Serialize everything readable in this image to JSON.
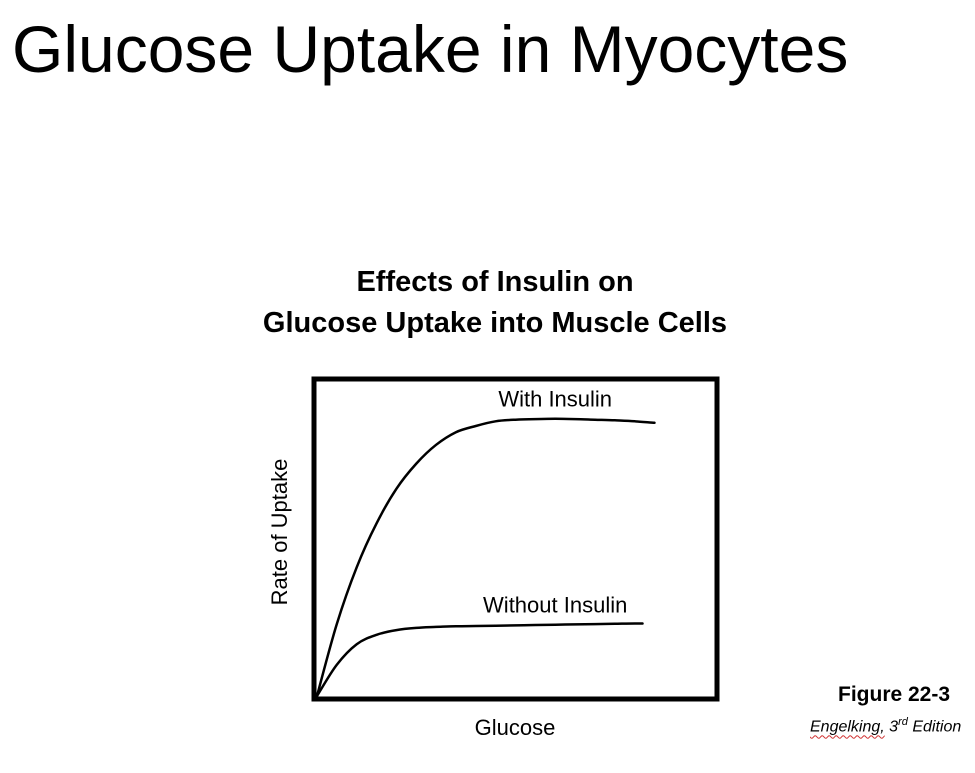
{
  "slide": {
    "title": "Glucose Uptake in Myocytes"
  },
  "figure": {
    "caption": "Figure 22-3",
    "credit": {
      "author": "Engelking,",
      "edition_number": "3",
      "edition_suffix": "rd",
      "edition_word": "Edition"
    }
  },
  "chart_data": {
    "type": "line",
    "title_lines": [
      "Effects of Insulin on",
      "Glucose Uptake into Muscle Cells"
    ],
    "xlabel": "Glucose",
    "ylabel": "Rate of Uptake",
    "grid": false,
    "legend": "none",
    "xlim": [
      0,
      10
    ],
    "ylim": [
      0,
      10
    ],
    "series": [
      {
        "name": "With Insulin",
        "x": [
          0,
          0.5,
          1,
          1.5,
          2,
          2.5,
          3,
          3.5,
          4,
          4.5,
          5,
          5.5,
          6,
          6.5,
          7,
          7.5,
          8,
          8.5
        ],
        "values": [
          0,
          2.3,
          4.1,
          5.5,
          6.6,
          7.4,
          8.0,
          8.4,
          8.6,
          8.75,
          8.8,
          8.82,
          8.83,
          8.82,
          8.8,
          8.78,
          8.75,
          8.7
        ],
        "color": "#000000"
      },
      {
        "name": "Without Insulin",
        "x": [
          0,
          0.5,
          1,
          1.5,
          2,
          2.5,
          3,
          3.5,
          4,
          4.5,
          5,
          5.5,
          6,
          6.5,
          7,
          7.5,
          8,
          8.2
        ],
        "values": [
          0,
          1.0,
          1.65,
          1.95,
          2.1,
          2.17,
          2.2,
          2.22,
          2.23,
          2.24,
          2.25,
          2.26,
          2.27,
          2.28,
          2.29,
          2.3,
          2.31,
          2.31
        ],
        "color": "#000000"
      }
    ]
  }
}
